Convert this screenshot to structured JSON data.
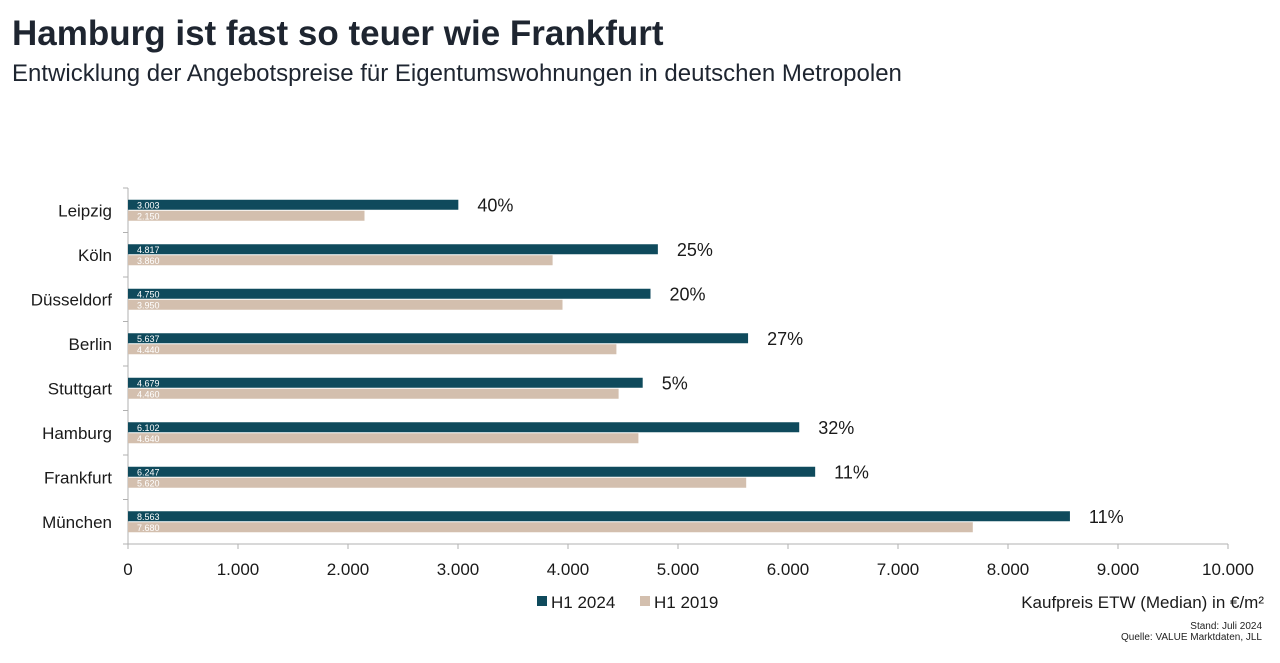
{
  "header": {
    "title": "Hamburg ist fast so teuer wie Frankfurt",
    "subtitle": "Entwicklung der Angebotspreise für Eigentumswohnungen in deutschen Metropolen"
  },
  "footer": {
    "stand": "Stand: Juli 2024",
    "source": "Quelle: VALUE Marktdaten, JLL"
  },
  "colors": {
    "h1_2024": "#0f4a5c",
    "h1_2019": "#d3bfae",
    "axis": "#b0b0b0"
  },
  "chart_data": {
    "type": "bar",
    "orientation": "horizontal",
    "title": "Hamburg ist fast so teuer wie Frankfurt",
    "subtitle": "Entwicklung der Angebotspreise für Eigentumswohnungen in deutschen Metropolen",
    "xlabel": "Kaufpreis ETW (Median) in €/m²",
    "ylabel": "",
    "xlim": [
      0,
      10000
    ],
    "xticks": [
      0,
      1000,
      2000,
      3000,
      4000,
      5000,
      6000,
      7000,
      8000,
      9000,
      10000
    ],
    "xtick_labels": [
      "0",
      "1.000",
      "2.000",
      "3.000",
      "4.000",
      "5.000",
      "6.000",
      "7.000",
      "8.000",
      "9.000",
      "10.000"
    ],
    "grid": false,
    "legend_position": "bottom",
    "categories": [
      "Leipzig",
      "Köln",
      "Düsseldorf",
      "Berlin",
      "Stuttgart",
      "Hamburg",
      "Frankfurt",
      "München"
    ],
    "series": [
      {
        "name": "H1 2024",
        "values": [
          3003,
          4817,
          4750,
          5637,
          4679,
          6102,
          6247,
          8563
        ],
        "labels": [
          "3.003",
          "4.817",
          "4.750",
          "5.637",
          "4.679",
          "6.102",
          "6.247",
          "8.563"
        ]
      },
      {
        "name": "H1 2019",
        "values": [
          2150,
          3860,
          3950,
          4440,
          4460,
          4640,
          5620,
          7680
        ],
        "labels": [
          "2.150",
          "3.860",
          "3.950",
          "4.440",
          "4.460",
          "4.640",
          "5.620",
          "7.680"
        ]
      }
    ],
    "change_labels": [
      "40%",
      "25%",
      "20%",
      "27%",
      "5%",
      "32%",
      "11%",
      "11%"
    ]
  }
}
